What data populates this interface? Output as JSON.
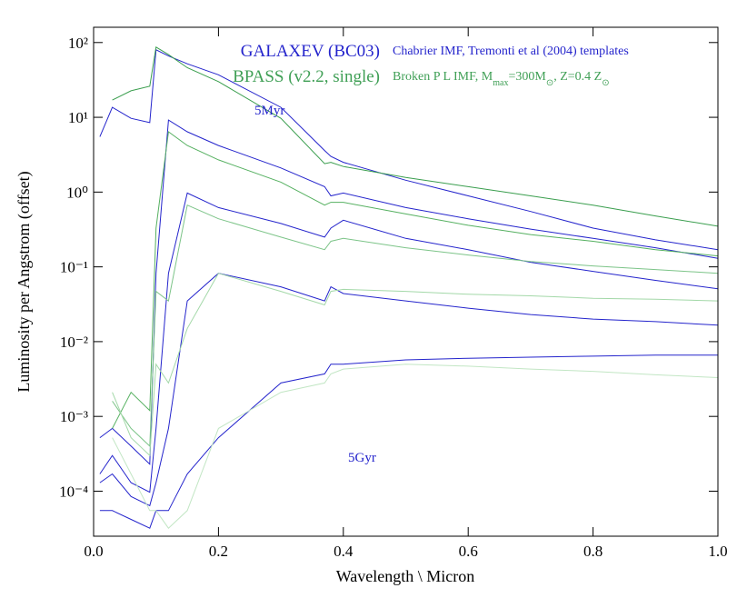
{
  "chart_data": {
    "type": "line",
    "x_label": "Wavelength \\ Micron",
    "y_label": "Luminosity per Angstrom (offset)",
    "log_y": true,
    "xlim": [
      0,
      1
    ],
    "xticks": [
      {
        "value": 0,
        "label": "0.0"
      },
      0.2,
      0.4,
      0.6,
      0.8,
      {
        "value": 1,
        "label": "1.0"
      }
    ],
    "ylim": [
      2.5e-05,
      160
    ],
    "yticks": [
      {
        "value": 0.0001,
        "label": "10⁻⁴"
      },
      {
        "value": 0.001,
        "label": "10⁻³"
      },
      {
        "value": 0.01,
        "label": "10⁻²"
      },
      {
        "value": 0.1,
        "label": "10⁻¹"
      },
      {
        "value": 1,
        "label": "10⁰"
      },
      {
        "value": 10,
        "label": "10¹"
      },
      {
        "value": 100,
        "label": "10²"
      }
    ],
    "x": [
      0.01,
      0.03,
      0.06,
      0.09,
      0.1,
      0.12,
      0.15,
      0.2,
      0.3,
      0.37,
      0.38,
      0.4,
      0.5,
      0.6,
      0.7,
      0.8,
      0.9,
      1.0
    ],
    "series": [
      {
        "name": "GALAXEV (BC03)",
        "color": "#2424cc",
        "note": [
          {
            "text": "Chabrier IMF, Tremonti et al (2004) templates"
          }
        ],
        "spectra": [
          {
            "color": "#2424cc",
            "values": [
              5.5,
              13.6,
              9.7,
              8.5,
              80,
              66,
              52,
              37,
              13.6,
              3.6,
              3.0,
              2.5,
              1.44,
              0.89,
              0.55,
              0.33,
              0.23,
              0.17
            ]
          },
          {
            "color": "#2424cc",
            "values": [
              0.00052,
              0.00069,
              0.0004,
              0.00023,
              0.082,
              9.2,
              6.4,
              4.2,
              2.1,
              1.18,
              0.89,
              0.97,
              0.62,
              0.44,
              0.32,
              0.24,
              0.18,
              0.13
            ]
          },
          {
            "color": "#2424cc",
            "values": [
              0.00017,
              0.0003,
              0.00013,
              9.7e-05,
              0.00069,
              0.082,
              0.97,
              0.62,
              0.38,
              0.25,
              0.33,
              0.42,
              0.24,
              0.17,
              0.115,
              0.087,
              0.066,
              0.051
            ]
          },
          {
            "color": "#2424cc",
            "values": [
              0.00013,
              0.00017,
              8.5e-05,
              6.4e-05,
              0.00013,
              0.00069,
              0.035,
              0.082,
              0.054,
              0.035,
              0.054,
              0.044,
              0.035,
              0.028,
              0.023,
              0.02,
              0.0185,
              0.0166
            ]
          },
          {
            "color": "#2424cc",
            "values": [
              5.5e-05,
              5.5e-05,
              4.2e-05,
              3.2e-05,
              5.5e-05,
              5.5e-05,
              0.00017,
              0.00052,
              0.0028,
              0.0037,
              0.005,
              0.005,
              0.0057,
              0.006,
              0.0062,
              0.0064,
              0.0066,
              0.0066
            ]
          }
        ]
      },
      {
        "name": "BPASS (v2.2, single)",
        "color": "#3f9f55",
        "note": [
          {
            "text": "Broken P L IMF, M"
          },
          {
            "sub": "max"
          },
          {
            "text": "=300M"
          },
          {
            "sub": "⊙"
          },
          {
            "text": ", Z=0.4 Z"
          },
          {
            "sub": "⊙"
          }
        ],
        "spectra": [
          {
            "color": "#3a9e4e",
            "values": [
              null,
              17,
              22.6,
              26,
              87,
              69,
              46,
              30,
              9.7,
              2.4,
              2.5,
              2.2,
              1.57,
              1.18,
              0.89,
              0.67,
              0.48,
              0.35
            ]
          },
          {
            "color": "#55b060",
            "values": [
              null,
              0.00069,
              0.0021,
              0.0012,
              0.33,
              6.4,
              4.2,
              2.7,
              1.36,
              0.67,
              0.73,
              0.73,
              0.51,
              0.36,
              0.27,
              0.22,
              0.17,
              0.14
            ]
          },
          {
            "color": "#7cc488",
            "values": [
              null,
              0.0016,
              0.00069,
              0.0004,
              0.047,
              0.035,
              0.67,
              0.44,
              0.25,
              0.17,
              0.22,
              0.24,
              0.18,
              0.144,
              0.118,
              0.103,
              0.092,
              0.082
            ]
          },
          {
            "color": "#a3d8a8",
            "values": [
              null,
              0.0021,
              0.00052,
              0.0003,
              0.005,
              0.0028,
              0.015,
              0.082,
              0.047,
              0.031,
              0.047,
              0.05,
              0.047,
              0.043,
              0.041,
              0.038,
              0.037,
              0.035
            ]
          },
          {
            "color": "#c2e6c4",
            "values": [
              null,
              0.00052,
              0.00017,
              5.5e-05,
              5.5e-05,
              3.2e-05,
              5.5e-05,
              0.00069,
              0.0021,
              0.0028,
              0.0037,
              0.0043,
              0.005,
              0.0047,
              0.0043,
              0.004,
              0.0036,
              0.0033
            ]
          }
        ]
      }
    ],
    "annotations": [
      {
        "text": "5Myr",
        "color": "#2424cc"
      },
      {
        "text": "5Gyr",
        "color": "#2424cc"
      }
    ]
  }
}
